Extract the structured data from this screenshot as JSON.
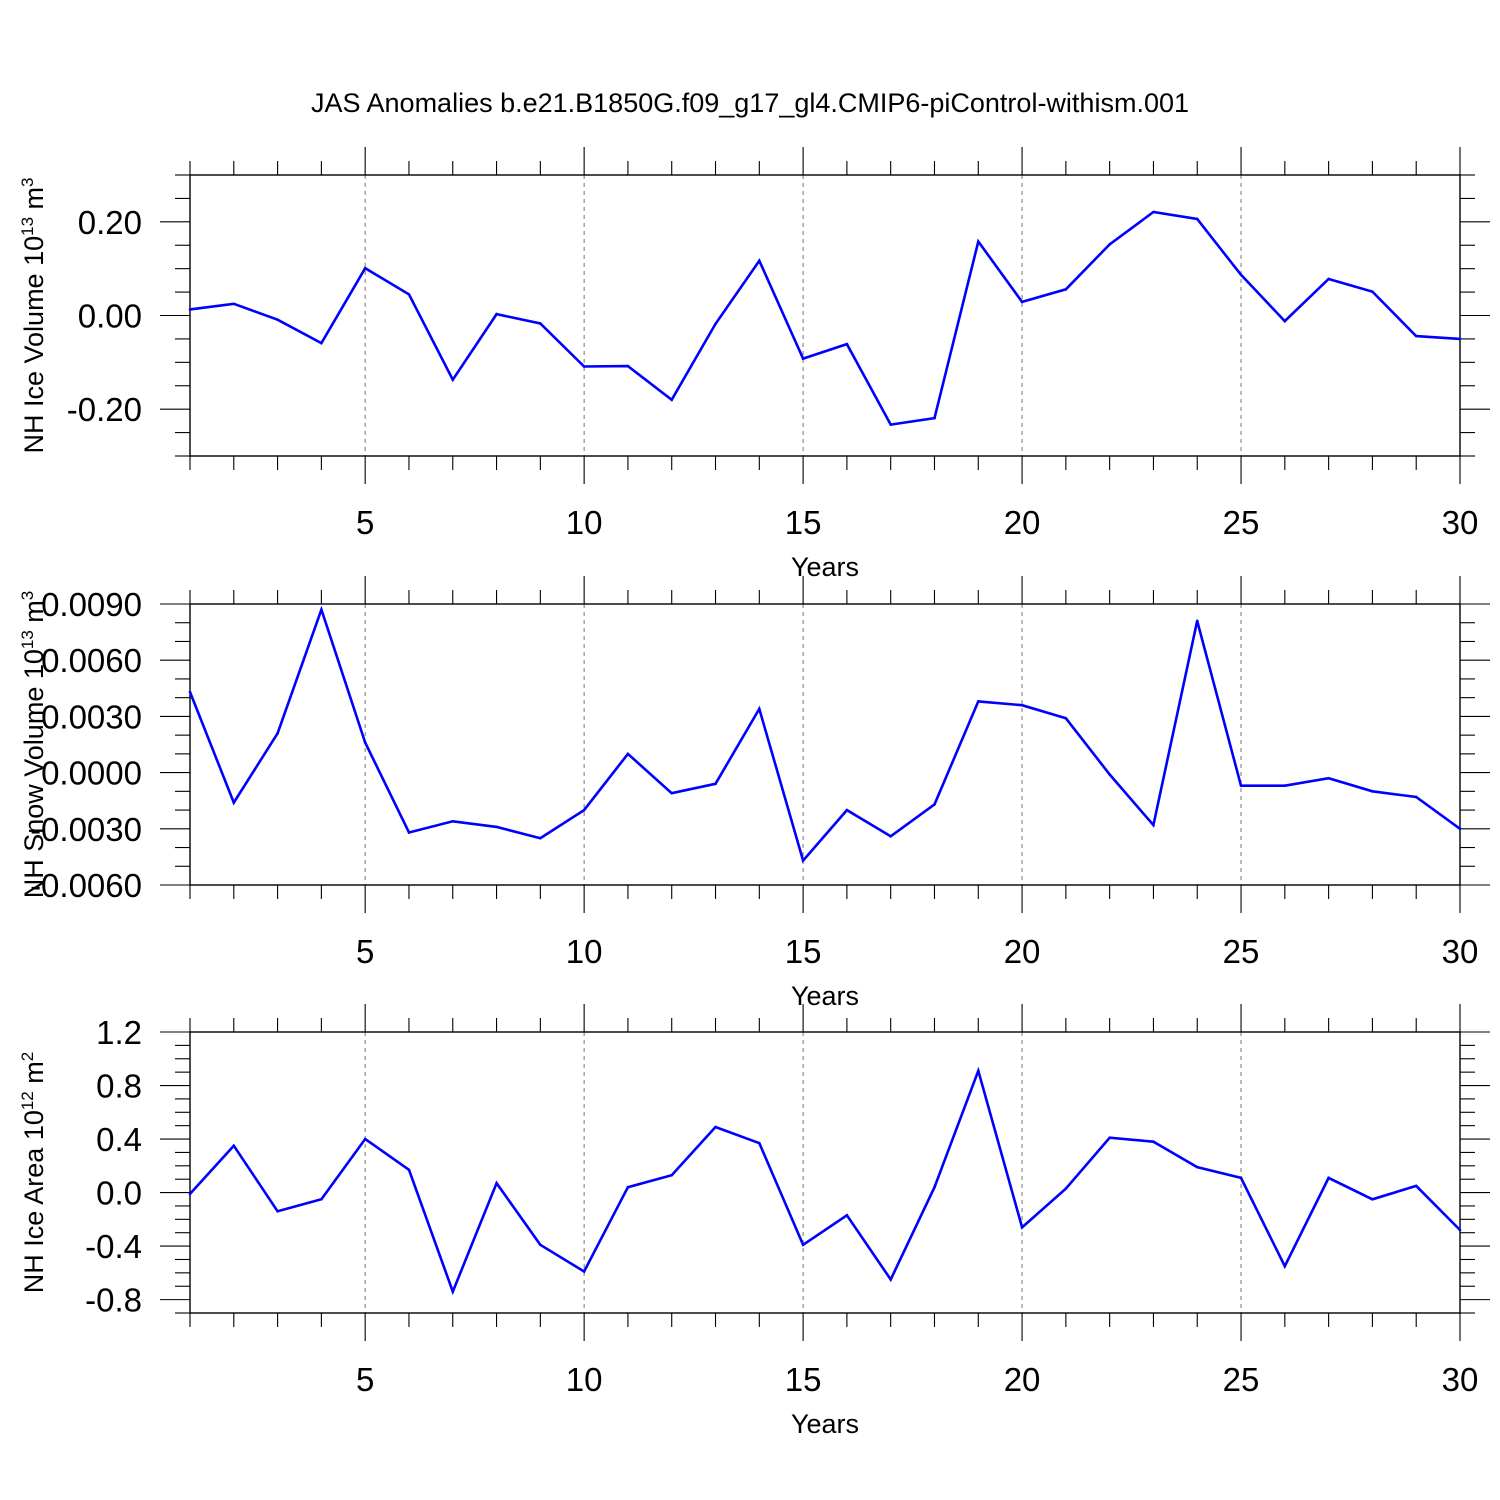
{
  "title": "JAS Anomalies b.e21.B1850G.f09_g17_gl4.CMIP6-piControl-withism.001",
  "colors": {
    "series": "#0000ff",
    "grid": "#777777",
    "axis": "#000000"
  },
  "chart_data": [
    {
      "type": "line",
      "ylabel": "NH Ice Volume 10",
      "ylabel_sup": "13",
      "ylabel_unit": " m",
      "ylabel_unit_sup": "3",
      "xlabel": "Years",
      "xlim": [
        1,
        30
      ],
      "ylim": [
        -0.3,
        0.3
      ],
      "yticks": [
        -0.2,
        0.0,
        0.2
      ],
      "ytick_labels": [
        "-0.20",
        "0.00",
        "0.20"
      ],
      "yminor_step": 0.05,
      "xticks": [
        5,
        10,
        15,
        20,
        25,
        30
      ],
      "xtick_labels": [
        "5",
        "10",
        "15",
        "20",
        "25",
        "30"
      ],
      "grid_x": [
        5,
        10,
        15,
        20,
        25
      ],
      "x": [
        1,
        2,
        3,
        4,
        5,
        6,
        7,
        8,
        9,
        10,
        11,
        12,
        13,
        14,
        15,
        16,
        17,
        18,
        19,
        20,
        21,
        22,
        23,
        24,
        25,
        26,
        27,
        28,
        29,
        30
      ],
      "values": [
        0.013,
        0.025,
        -0.009,
        -0.059,
        0.101,
        0.045,
        -0.137,
        0.003,
        -0.017,
        -0.109,
        -0.108,
        -0.18,
        -0.018,
        0.117,
        -0.092,
        -0.061,
        -0.233,
        -0.219,
        0.158,
        0.029,
        0.056,
        0.152,
        0.221,
        0.206,
        0.087,
        -0.012,
        0.078,
        0.051,
        -0.044,
        -0.05
      ]
    },
    {
      "type": "line",
      "ylabel": "NH Snow Volume 10",
      "ylabel_sup": "13",
      "ylabel_unit": " m",
      "ylabel_unit_sup": "3",
      "xlabel": "Years",
      "xlim": [
        1,
        30
      ],
      "ylim": [
        -0.006,
        0.009
      ],
      "yticks": [
        -0.006,
        -0.003,
        0.0,
        0.003,
        0.006,
        0.009
      ],
      "ytick_labels": [
        "-0.0060",
        "-0.0030",
        "0.0000",
        "0.0030",
        "0.0060",
        "0.0090"
      ],
      "yminor_step": 0.001,
      "xticks": [
        5,
        10,
        15,
        20,
        25,
        30
      ],
      "xtick_labels": [
        "5",
        "10",
        "15",
        "20",
        "25",
        "30"
      ],
      "grid_x": [
        5,
        10,
        15,
        20,
        25
      ],
      "x": [
        1,
        2,
        3,
        4,
        5,
        6,
        7,
        8,
        9,
        10,
        11,
        12,
        13,
        14,
        15,
        16,
        17,
        18,
        19,
        20,
        21,
        22,
        23,
        24,
        25,
        26,
        27,
        28,
        29,
        30
      ],
      "values": [
        0.0043,
        -0.0016,
        0.0021,
        0.0087,
        0.0016,
        -0.0032,
        -0.0026,
        -0.0029,
        -0.0035,
        -0.002,
        0.001,
        -0.0011,
        -0.0006,
        0.0034,
        -0.0047,
        -0.002,
        -0.0034,
        -0.0017,
        0.0038,
        0.0036,
        0.0029,
        -0.0001,
        -0.0028,
        0.0081,
        -0.0007,
        -0.0007,
        -0.0003,
        -0.001,
        -0.0013,
        -0.003
      ]
    },
    {
      "type": "line",
      "ylabel": "NH Ice Area 10",
      "ylabel_sup": "12",
      "ylabel_unit": " m",
      "ylabel_unit_sup": "2",
      "xlabel": "Years",
      "xlim": [
        1,
        30
      ],
      "ylim": [
        -0.9,
        1.2
      ],
      "yticks": [
        -0.8,
        -0.4,
        0.0,
        0.4,
        0.8,
        1.2
      ],
      "ytick_labels": [
        "-0.8",
        "-0.4",
        "0.0",
        "0.4",
        "0.8",
        "1.2"
      ],
      "yminor_step": 0.1,
      "xticks": [
        5,
        10,
        15,
        20,
        25,
        30
      ],
      "xtick_labels": [
        "5",
        "10",
        "15",
        "20",
        "25",
        "30"
      ],
      "grid_x": [
        5,
        10,
        15,
        20,
        25
      ],
      "x": [
        1,
        2,
        3,
        4,
        5,
        6,
        7,
        8,
        9,
        10,
        11,
        12,
        13,
        14,
        15,
        16,
        17,
        18,
        19,
        20,
        21,
        22,
        23,
        24,
        25,
        26,
        27,
        28,
        29,
        30
      ],
      "values": [
        -0.01,
        0.35,
        -0.14,
        -0.05,
        0.4,
        0.17,
        -0.74,
        0.07,
        -0.39,
        -0.59,
        0.04,
        0.13,
        0.49,
        0.37,
        -0.39,
        -0.17,
        -0.65,
        0.04,
        0.91,
        -0.26,
        0.03,
        0.41,
        0.38,
        0.19,
        0.11,
        -0.55,
        0.11,
        -0.05,
        0.05,
        -0.28
      ]
    }
  ]
}
